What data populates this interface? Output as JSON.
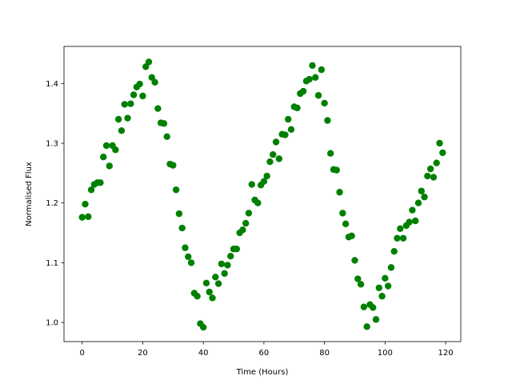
{
  "chart_data": {
    "type": "scatter",
    "title": "",
    "xlabel": "Time (Hours)",
    "ylabel": "Normalised Flux",
    "xlim": [
      -6,
      125
    ],
    "ylim": [
      0.968,
      1.462
    ],
    "xticks": [
      0,
      20,
      40,
      60,
      80,
      100,
      120
    ],
    "yticks": [
      1.0,
      1.1,
      1.2,
      1.3,
      1.4
    ],
    "xtick_labels": [
      "0",
      "20",
      "40",
      "60",
      "80",
      "100",
      "120"
    ],
    "ytick_labels": [
      "1.0",
      "1.1",
      "1.2",
      "1.3",
      "1.4"
    ],
    "grid": false,
    "marker_color": "#008000",
    "series": [
      {
        "x": [
          0,
          1,
          2,
          3,
          4,
          5,
          6,
          7,
          8,
          9,
          10,
          11,
          12,
          13,
          14,
          15,
          16,
          17,
          18,
          19,
          20,
          21,
          22,
          23,
          24,
          25,
          26,
          27,
          28,
          29,
          30,
          31,
          32,
          33,
          34,
          35,
          36,
          37,
          38,
          39,
          40,
          41,
          42,
          43,
          44,
          45,
          46,
          47,
          48,
          49,
          50,
          51,
          52,
          53,
          54,
          55,
          56,
          57,
          58,
          59,
          60,
          61,
          62,
          63,
          64,
          65,
          66,
          67,
          68,
          69,
          70,
          71,
          72,
          73,
          74,
          75,
          76,
          77,
          78,
          79,
          80,
          81,
          82,
          83,
          84,
          85,
          86,
          87,
          88,
          89,
          90,
          91,
          92,
          93,
          94,
          95,
          96,
          97,
          98,
          99,
          100,
          101,
          102,
          103,
          104,
          105,
          106,
          107,
          108,
          109,
          110,
          111,
          112,
          113,
          114,
          115,
          116,
          117,
          118,
          119
        ],
        "y": [
          1.176,
          1.198,
          1.177,
          1.222,
          1.231,
          1.234,
          1.234,
          1.277,
          1.296,
          1.262,
          1.296,
          1.289,
          1.34,
          1.321,
          1.365,
          1.342,
          1.366,
          1.381,
          1.394,
          1.399,
          1.379,
          1.428,
          1.436,
          1.41,
          1.402,
          1.358,
          1.334,
          1.333,
          1.311,
          1.265,
          1.263,
          1.222,
          1.182,
          1.158,
          1.125,
          1.11,
          1.1,
          1.049,
          1.044,
          0.998,
          0.992,
          1.066,
          1.051,
          1.041,
          1.076,
          1.065,
          1.098,
          1.082,
          1.096,
          1.111,
          1.123,
          1.123,
          1.15,
          1.155,
          1.166,
          1.183,
          1.231,
          1.205,
          1.2,
          1.23,
          1.236,
          1.245,
          1.269,
          1.281,
          1.302,
          1.274,
          1.315,
          1.314,
          1.34,
          1.323,
          1.361,
          1.359,
          1.383,
          1.387,
          1.404,
          1.407,
          1.43,
          1.41,
          1.38,
          1.423,
          1.367,
          1.338,
          1.283,
          1.256,
          1.255,
          1.218,
          1.183,
          1.165,
          1.143,
          1.145,
          1.104,
          1.073,
          1.064,
          1.026,
          0.993,
          1.03,
          1.025,
          1.005,
          1.058,
          1.044,
          1.074,
          1.061,
          1.092,
          1.119,
          1.141,
          1.157,
          1.141,
          1.162,
          1.168,
          1.188,
          1.17,
          1.2,
          1.22,
          1.21,
          1.245,
          1.257,
          1.243,
          1.267,
          1.3,
          1.284
        ]
      }
    ]
  }
}
